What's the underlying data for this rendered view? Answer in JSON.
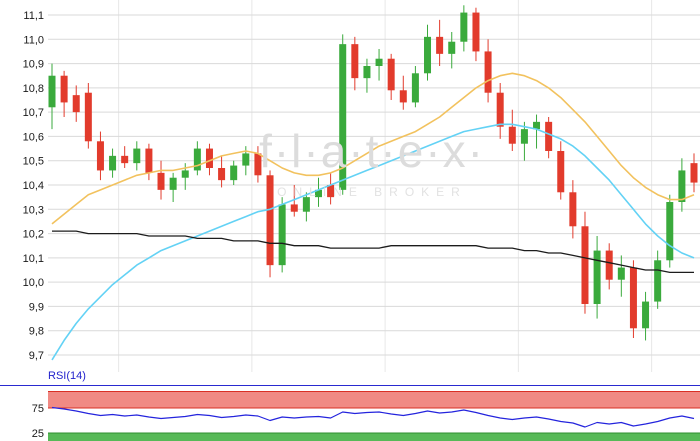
{
  "watermark": {
    "brand": "f·l·a·t·e·x·",
    "subtitle": "ONLINE BROKER"
  },
  "rsi_panel": {
    "label": "RSI(14)",
    "upper_level": "75",
    "lower_level": "25"
  },
  "colors": {
    "up": "#3aaa3c",
    "down": "#e23b2c",
    "grid": "#d9d9d9",
    "grid_v": "#e8e8e8",
    "axis_text": "#1a1a1a",
    "rsi_label": "#2222cc",
    "panel_border": "#2a2ad0"
  },
  "chart_data": {
    "type": "candlestick",
    "title": "",
    "y_axis": {
      "ticks": [
        11.1,
        11.0,
        10.9,
        10.8,
        10.7,
        10.6,
        10.5,
        10.4,
        10.3,
        10.2,
        10.1,
        10.0,
        9.9,
        9.8,
        9.7
      ],
      "labels": [
        "11,1",
        "11,0",
        "10,9",
        "10,8",
        "10,7",
        "10,6",
        "10,5",
        "10,4",
        "10,3",
        "10,2",
        "10,1",
        "10,0",
        "9,9",
        "9,8",
        "9,7"
      ]
    },
    "ylim": [
      9.65,
      11.15
    ],
    "grid": true,
    "v_gridline_indices": [
      5.5,
      16.5,
      27.5,
      38.5,
      49.5
    ],
    "candles": [
      [
        10.72,
        10.9,
        10.63,
        10.85
      ],
      [
        10.85,
        10.87,
        10.68,
        10.74
      ],
      [
        10.77,
        10.81,
        10.66,
        10.7
      ],
      [
        10.78,
        10.82,
        10.55,
        10.58
      ],
      [
        10.58,
        10.62,
        10.42,
        10.46
      ],
      [
        10.46,
        10.55,
        10.43,
        10.52
      ],
      [
        10.52,
        10.56,
        10.47,
        10.49
      ],
      [
        10.49,
        10.58,
        10.46,
        10.55
      ],
      [
        10.55,
        10.57,
        10.42,
        10.45
      ],
      [
        10.45,
        10.5,
        10.34,
        10.38
      ],
      [
        10.38,
        10.45,
        10.33,
        10.43
      ],
      [
        10.43,
        10.49,
        10.38,
        10.46
      ],
      [
        10.46,
        10.58,
        10.44,
        10.55
      ],
      [
        10.55,
        10.57,
        10.44,
        10.47
      ],
      [
        10.47,
        10.52,
        10.39,
        10.42
      ],
      [
        10.42,
        10.5,
        10.4,
        10.48
      ],
      [
        10.48,
        10.56,
        10.44,
        10.53
      ],
      [
        10.53,
        10.56,
        10.41,
        10.44
      ],
      [
        10.44,
        10.46,
        10.02,
        10.07
      ],
      [
        10.07,
        10.35,
        10.04,
        10.32
      ],
      [
        10.32,
        10.4,
        10.27,
        10.29
      ],
      [
        10.29,
        10.37,
        10.25,
        10.35
      ],
      [
        10.35,
        10.43,
        10.31,
        10.38
      ],
      [
        10.4,
        10.45,
        10.32,
        10.35
      ],
      [
        10.38,
        11.02,
        10.36,
        10.98
      ],
      [
        10.98,
        11.01,
        10.79,
        10.84
      ],
      [
        10.84,
        10.92,
        10.78,
        10.89
      ],
      [
        10.89,
        10.96,
        10.83,
        10.92
      ],
      [
        10.92,
        10.94,
        10.75,
        10.79
      ],
      [
        10.79,
        10.85,
        10.71,
        10.74
      ],
      [
        10.74,
        10.89,
        10.72,
        10.86
      ],
      [
        10.86,
        11.06,
        10.83,
        11.01
      ],
      [
        11.01,
        11.08,
        10.89,
        10.94
      ],
      [
        10.94,
        11.03,
        10.88,
        10.99
      ],
      [
        10.99,
        11.14,
        10.95,
        11.11
      ],
      [
        11.11,
        11.13,
        10.91,
        10.95
      ],
      [
        10.95,
        11.0,
        10.74,
        10.78
      ],
      [
        10.78,
        10.82,
        10.59,
        10.64
      ],
      [
        10.64,
        10.71,
        10.54,
        10.57
      ],
      [
        10.57,
        10.66,
        10.5,
        10.63
      ],
      [
        10.63,
        10.69,
        10.55,
        10.66
      ],
      [
        10.66,
        10.68,
        10.51,
        10.54
      ],
      [
        10.54,
        10.58,
        10.34,
        10.37
      ],
      [
        10.37,
        10.42,
        10.18,
        10.23
      ],
      [
        10.23,
        10.29,
        9.87,
        9.91
      ],
      [
        9.91,
        10.19,
        9.85,
        10.13
      ],
      [
        10.13,
        10.16,
        9.97,
        10.01
      ],
      [
        10.01,
        10.11,
        9.94,
        10.06
      ],
      [
        10.06,
        10.09,
        9.77,
        9.81
      ],
      [
        9.81,
        9.96,
        9.76,
        9.92
      ],
      [
        9.92,
        10.13,
        9.89,
        10.09
      ],
      [
        10.09,
        10.36,
        10.06,
        10.33
      ],
      [
        10.33,
        10.51,
        10.29,
        10.46
      ],
      [
        10.49,
        10.53,
        10.37,
        10.41
      ]
    ],
    "series": [
      {
        "name": "ma-slow-orange",
        "color": "#f2c25e",
        "width": 1.6,
        "values": [
          10.24,
          10.28,
          10.32,
          10.36,
          10.38,
          10.4,
          10.42,
          10.44,
          10.45,
          10.46,
          10.46,
          10.47,
          10.48,
          10.5,
          10.52,
          10.53,
          10.54,
          10.53,
          10.5,
          10.47,
          10.45,
          10.44,
          10.44,
          10.45,
          10.47,
          10.5,
          10.53,
          10.56,
          10.58,
          10.6,
          10.62,
          10.65,
          10.68,
          10.72,
          10.76,
          10.8,
          10.83,
          10.85,
          10.86,
          10.85,
          10.83,
          10.8,
          10.76,
          10.71,
          10.66,
          10.6,
          10.54,
          10.48,
          10.43,
          10.39,
          10.36,
          10.34,
          10.34,
          10.36
        ]
      },
      {
        "name": "ma-mid-cyan",
        "color": "#63d2f5",
        "width": 1.6,
        "values": [
          9.68,
          9.76,
          9.83,
          9.89,
          9.94,
          9.99,
          10.03,
          10.07,
          10.1,
          10.13,
          10.15,
          10.17,
          10.19,
          10.21,
          10.23,
          10.25,
          10.27,
          10.29,
          10.3,
          10.32,
          10.34,
          10.36,
          10.38,
          10.4,
          10.42,
          10.44,
          10.46,
          10.48,
          10.5,
          10.52,
          10.54,
          10.56,
          10.58,
          10.6,
          10.62,
          10.63,
          10.64,
          10.65,
          10.65,
          10.64,
          10.63,
          10.61,
          10.59,
          10.56,
          10.52,
          10.47,
          10.42,
          10.36,
          10.3,
          10.24,
          10.19,
          10.15,
          10.12,
          10.1
        ]
      },
      {
        "name": "ma-long-black",
        "color": "#1c1c1c",
        "width": 1.3,
        "values": [
          10.21,
          10.21,
          10.21,
          10.2,
          10.2,
          10.2,
          10.2,
          10.2,
          10.19,
          10.19,
          10.19,
          10.19,
          10.18,
          10.18,
          10.18,
          10.17,
          10.17,
          10.17,
          10.16,
          10.16,
          10.15,
          10.15,
          10.15,
          10.14,
          10.14,
          10.14,
          10.14,
          10.14,
          10.15,
          10.15,
          10.15,
          10.15,
          10.15,
          10.15,
          10.15,
          10.15,
          10.14,
          10.14,
          10.14,
          10.13,
          10.13,
          10.12,
          10.12,
          10.11,
          10.1,
          10.09,
          10.08,
          10.07,
          10.06,
          10.05,
          10.05,
          10.04,
          10.04,
          10.04
        ]
      }
    ],
    "rsi": {
      "period_label": "RSI(14)",
      "upper": 75,
      "lower": 25,
      "line_color": "#2424dd",
      "overbought_fill": "#f08a84",
      "overbought_edge": "#d93025",
      "oversold_fill": "#57b957",
      "oversold_edge": "#2f8f2f",
      "values": [
        76,
        73,
        69,
        64,
        60,
        62,
        59,
        61,
        57,
        54,
        56,
        58,
        62,
        60,
        56,
        58,
        61,
        59,
        50,
        57,
        55,
        57,
        58,
        55,
        67,
        64,
        66,
        67,
        63,
        60,
        64,
        69,
        65,
        67,
        71,
        66,
        60,
        55,
        52,
        55,
        57,
        53,
        48,
        45,
        37,
        46,
        43,
        46,
        39,
        43,
        48,
        55,
        59,
        54
      ]
    }
  }
}
